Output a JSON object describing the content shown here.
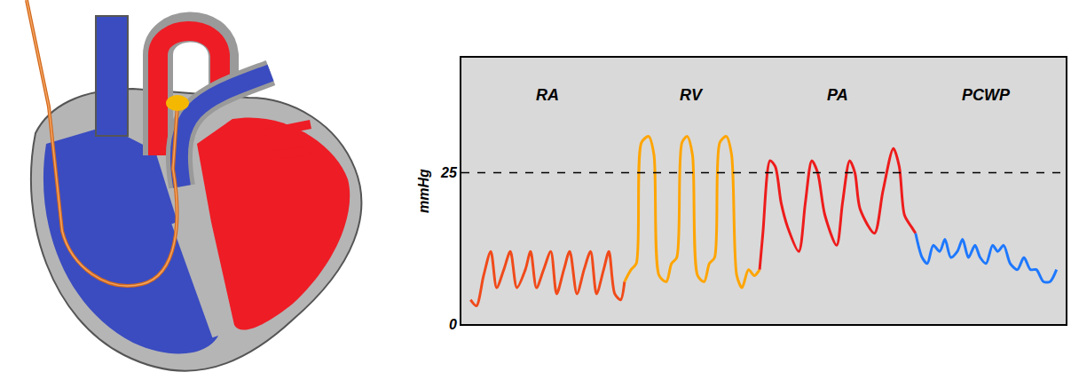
{
  "chart_data": {
    "type": "line",
    "ylabel": "mmHg",
    "xlim": [
      7.4,
      100
    ],
    "xticks": [],
    "ylim": [
      0,
      44
    ],
    "yticks": [
      0,
      25
    ],
    "hline": 25,
    "grid": false,
    "tick_labels": "y",
    "series": [
      {
        "name": "RA",
        "color": "#f04a1a",
        "x": [
          8.8,
          9.7,
          10.8,
          11.9,
          12.8,
          13.9,
          14.9,
          15.9,
          17.2,
          18.0,
          18.9,
          20.0,
          21.1,
          22.0,
          23.1,
          24.0,
          25.1,
          26.2,
          27.2,
          28.1,
          29.2,
          30.0,
          30.9,
          31.8,
          32.4
        ],
        "values": [
          4,
          3,
          8,
          12,
          6,
          9,
          12,
          6,
          9,
          12,
          6,
          9,
          12,
          5,
          9,
          12,
          5,
          9,
          12,
          5,
          9,
          12,
          5,
          4,
          7
        ]
      },
      {
        "name": "RV",
        "color": "#ffa500",
        "x": [
          32.4,
          33.4,
          34.2,
          35.0,
          36.1,
          36.9,
          37.7,
          38.8,
          39.6,
          40.4,
          41.2,
          42.0,
          42.8,
          43.6,
          44.6,
          45.4,
          46.2,
          47.0,
          48.0,
          48.8,
          49.6,
          50.4,
          51.4,
          52.3,
          53.1
        ],
        "values": [
          7,
          9,
          10,
          30,
          31,
          28,
          8,
          7,
          10,
          11,
          30,
          31,
          28,
          8,
          7,
          10,
          11,
          30,
          31,
          28,
          8,
          6,
          9,
          8,
          9
        ]
      },
      {
        "name": "PA",
        "color": "#ee1c1c",
        "x": [
          53.1,
          53.6,
          54.7,
          55.5,
          56.4,
          57.4,
          59.1,
          60.1,
          61.1,
          62.0,
          63.1,
          64.9,
          65.8,
          66.9,
          67.7,
          68.5,
          70.7,
          72.0,
          73.6,
          74.5,
          75.3,
          76.4,
          77.0
        ],
        "values": [
          9,
          15,
          27,
          26,
          20,
          16,
          12,
          20,
          27,
          25,
          18,
          13,
          20,
          27,
          25,
          19,
          15,
          22,
          29,
          26,
          18,
          16,
          15
        ]
      },
      {
        "name": "PCWP",
        "color": "#1e78ff",
        "x": [
          77.0,
          78.0,
          78.8,
          79.7,
          80.7,
          81.5,
          82.4,
          83.4,
          84.2,
          85.1,
          86.1,
          86.9,
          87.8,
          88.8,
          89.6,
          90.5,
          91.5,
          92.6,
          93.6,
          94.6,
          95.5,
          96.6,
          97.6,
          98.6
        ],
        "values": [
          15,
          11,
          10,
          13,
          12,
          14,
          11,
          12,
          14,
          11,
          13,
          11,
          10,
          13,
          12,
          13,
          10,
          9,
          11,
          9,
          9,
          7,
          7,
          9
        ]
      }
    ]
  }
}
